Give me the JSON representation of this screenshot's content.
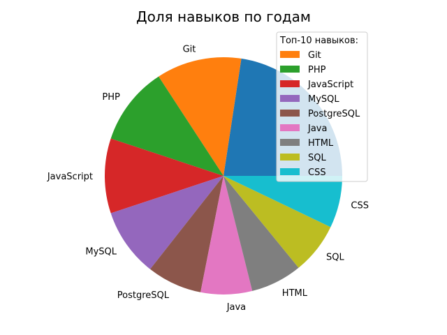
{
  "chart_data": {
    "type": "pie",
    "title": "Доля навыков по годам",
    "legend_title": "Топ-10 навыков:",
    "legend_position": "upper-right",
    "start_angle_deg": 0,
    "direction": "counterclockwise",
    "slices": [
      {
        "label": "",
        "legend": "",
        "value": 22.6,
        "color": "#1f77b4"
      },
      {
        "label": "Git",
        "legend": "Git",
        "value": 11.6,
        "color": "#ff7f0e"
      },
      {
        "label": "PHP",
        "legend": "PHP",
        "value": 10.7,
        "color": "#2ca02c"
      },
      {
        "label": "JavaScript",
        "legend": "JavaScript",
        "value": 10.2,
        "color": "#d62728"
      },
      {
        "label": "MySQL",
        "legend": "MySQL",
        "value": 9.3,
        "color": "#9467bd"
      },
      {
        "label": "PostgreSQL",
        "legend": "PostgreSQL",
        "value": 7.5,
        "color": "#8c564b"
      },
      {
        "label": "Java",
        "legend": "Java",
        "value": 7.0,
        "color": "#e377c2"
      },
      {
        "label": "HTML",
        "legend": "HTML",
        "value": 7.0,
        "color": "#7f7f7f"
      },
      {
        "label": "SQL",
        "legend": "SQL",
        "value": 7.0,
        "color": "#bcbd22"
      },
      {
        "label": "CSS",
        "legend": "CSS",
        "value": 7.1,
        "color": "#17becf"
      }
    ]
  }
}
